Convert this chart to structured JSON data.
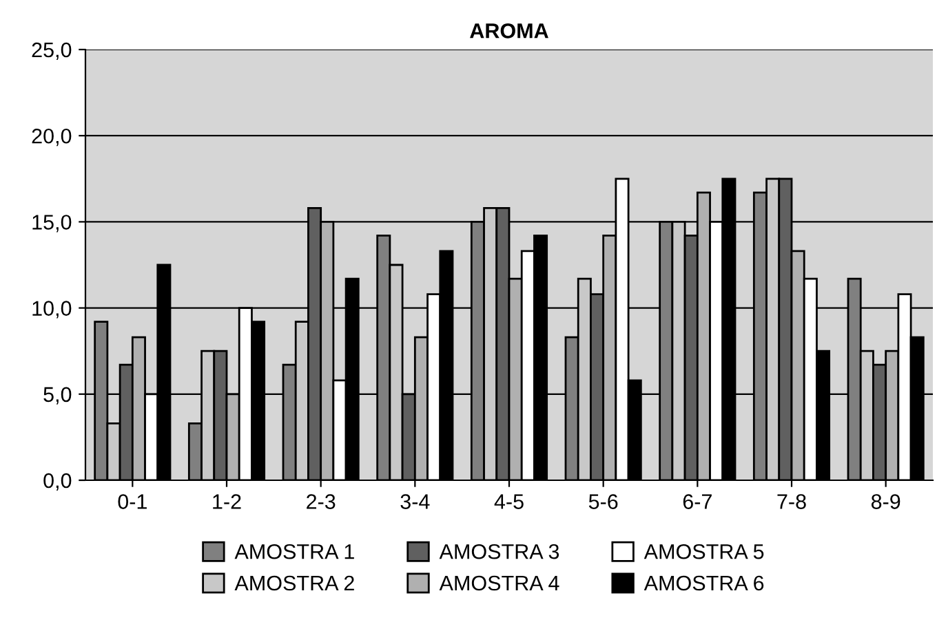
{
  "chart_data": {
    "type": "bar",
    "title": "AROMA",
    "categories": [
      "0-1",
      "1-2",
      "2-3",
      "3-4",
      "4-5",
      "5-6",
      "6-7",
      "7-8",
      "8-9"
    ],
    "series": [
      {
        "name": "AMOSTRA 1",
        "color": "#808080",
        "values": [
          9.2,
          3.3,
          6.7,
          14.2,
          15.0,
          8.3,
          15.0,
          16.7,
          11.7
        ]
      },
      {
        "name": "AMOSTRA 2",
        "color": "#c8c8c8",
        "values": [
          3.3,
          7.5,
          9.2,
          12.5,
          15.8,
          11.7,
          15.0,
          17.5,
          7.5
        ]
      },
      {
        "name": "AMOSTRA 3",
        "color": "#606060",
        "values": [
          6.7,
          7.5,
          15.8,
          5.0,
          15.8,
          10.8,
          14.2,
          17.5,
          6.7
        ]
      },
      {
        "name": "AMOSTRA 4",
        "color": "#b0b0b0",
        "values": [
          8.3,
          5.0,
          15.0,
          8.3,
          11.7,
          14.2,
          16.7,
          13.3,
          7.5
        ]
      },
      {
        "name": "AMOSTRA 5",
        "color": "#ffffff",
        "values": [
          5.0,
          10.0,
          5.8,
          10.8,
          13.3,
          17.5,
          15.0,
          11.7,
          10.8
        ]
      },
      {
        "name": "AMOSTRA 6",
        "color": "#000000",
        "values": [
          12.5,
          9.2,
          11.7,
          13.3,
          14.2,
          5.8,
          17.5,
          7.5,
          8.3
        ]
      }
    ],
    "ylim": [
      0,
      25
    ],
    "yticks": [
      {
        "value": 0,
        "label": "0,0"
      },
      {
        "value": 5,
        "label": "5,0"
      },
      {
        "value": 10,
        "label": "10,0"
      },
      {
        "value": 15,
        "label": "15,0"
      },
      {
        "value": 20,
        "label": "20,0"
      },
      {
        "value": 25,
        "label": "25,0"
      }
    ],
    "grid": "y",
    "legend": "bottom"
  }
}
